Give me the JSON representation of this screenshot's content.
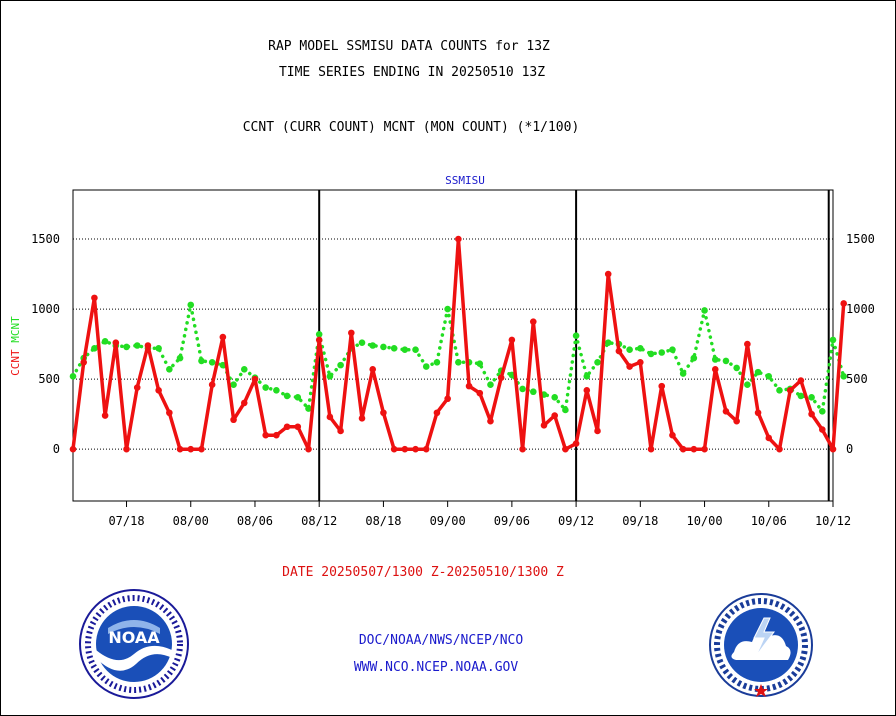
{
  "header": {
    "line1": "RAP MODEL SSMISU DATA COUNTS for 13Z",
    "line2": "TIME SERIES ENDING IN 20250510 13Z",
    "line3": "CCNT (CURR COUNT) MCNT (MON COUNT) (*1/100)"
  },
  "footer": {
    "date_range": "DATE 20250507/1300 Z-20250510/1300 Z",
    "org": "DOC/NOAA/NWS/NCEP/NCO",
    "url": "WWW.NCO.NCEP.NOAA.GOV"
  },
  "logos": {
    "noaa_text": "NOAA",
    "nws_ring": "NATIONAL WEATHER SERVICE",
    "noaa_ring": "NATIONAL OCEANIC AND ATMOSPHERIC ADMINISTRATION · U.S. DEPARTMENT OF COMMERCE"
  },
  "colors": {
    "ccnt": "#ee1111",
    "mcnt": "#22dd22",
    "label_blue": "#1a1acc",
    "footer_red": "#dd1111"
  },
  "chart_data": {
    "type": "line",
    "title": "SSMISU",
    "ylabel_parts": [
      {
        "text": "CCNT",
        "color": "#ee1111"
      },
      {
        "text": "MCNT",
        "color": "#22dd22"
      }
    ],
    "ylim": [
      -370,
      1850
    ],
    "xlim": [
      0,
      71
    ],
    "yticks": [
      0,
      500,
      1000,
      1500
    ],
    "ytick_labels": [
      "0",
      "500",
      "1000",
      "1500"
    ],
    "xticks": [
      {
        "x": 5,
        "label": "07/18"
      },
      {
        "x": 11,
        "label": "08/00"
      },
      {
        "x": 17,
        "label": "08/06"
      },
      {
        "x": 23,
        "label": "08/12"
      },
      {
        "x": 29,
        "label": "08/18"
      },
      {
        "x": 35,
        "label": "09/00"
      },
      {
        "x": 41,
        "label": "09/06"
      },
      {
        "x": 47,
        "label": "09/12"
      },
      {
        "x": 53,
        "label": "09/18"
      },
      {
        "x": 59,
        "label": "10/00"
      },
      {
        "x": 65,
        "label": "10/06"
      },
      {
        "x": 71,
        "label": "10/12"
      }
    ],
    "day_separators": [
      23,
      47,
      70.6
    ],
    "gridlines": "horizontal dotted",
    "series": [
      {
        "name": "CCNT",
        "color": "#ee1111",
        "style": "solid",
        "values": [
          0,
          620,
          1080,
          240,
          760,
          0,
          440,
          740,
          420,
          260,
          0,
          0,
          0,
          460,
          800,
          210,
          330,
          500,
          100,
          100,
          160,
          160,
          0,
          780,
          230,
          130,
          830,
          220,
          570,
          260,
          0,
          0,
          0,
          0,
          260,
          360,
          1500,
          450,
          400,
          200,
          510,
          780,
          0,
          910,
          170,
          240,
          0,
          40,
          420,
          130,
          1250,
          700,
          590,
          620,
          0,
          450,
          100,
          0,
          0,
          0,
          570,
          270,
          200,
          750,
          260,
          80,
          0,
          420,
          490,
          250,
          140,
          0,
          1040
        ]
      },
      {
        "name": "MCNT",
        "color": "#22dd22",
        "style": "dotted",
        "values": [
          520,
          650,
          720,
          770,
          740,
          730,
          740,
          720,
          720,
          570,
          650,
          1030,
          630,
          620,
          600,
          460,
          570,
          510,
          440,
          420,
          380,
          370,
          290,
          820,
          520,
          600,
          720,
          760,
          740,
          730,
          720,
          710,
          710,
          590,
          620,
          1000,
          620,
          620,
          610,
          460,
          560,
          530,
          430,
          410,
          390,
          370,
          280,
          810,
          520,
          620,
          760,
          750,
          710,
          720,
          680,
          690,
          710,
          540,
          650,
          990,
          640,
          630,
          580,
          460,
          550,
          520,
          420,
          430,
          380,
          370,
          270,
          780,
          520
        ]
      }
    ]
  }
}
